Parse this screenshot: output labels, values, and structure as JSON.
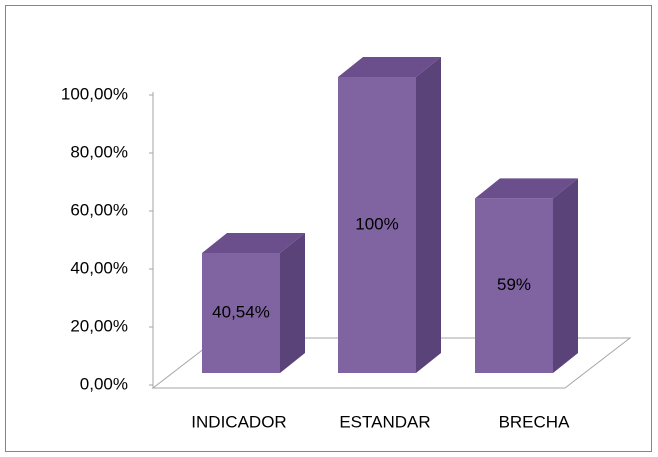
{
  "chart_data": {
    "type": "bar3d",
    "categories": [
      "INDICADOR",
      "ESTANDAR",
      "BRECHA"
    ],
    "values": [
      40.54,
      100,
      59
    ],
    "value_labels": [
      "40,54%",
      "100%",
      "59%"
    ],
    "color": "#8064a2",
    "ylim": [
      0,
      100
    ],
    "yticks": [
      {
        "value": 0,
        "label": "0,00%"
      },
      {
        "value": 20,
        "label": "20,00%"
      },
      {
        "value": 40,
        "label": "40,00%"
      },
      {
        "value": 60,
        "label": "60,00%"
      },
      {
        "value": 80,
        "label": "80,00%"
      },
      {
        "value": 100,
        "label": "100,00%"
      }
    ]
  }
}
